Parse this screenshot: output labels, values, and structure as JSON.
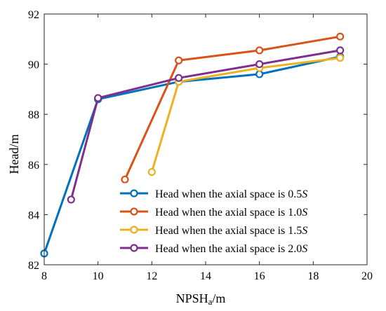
{
  "chart_data": {
    "type": "line",
    "xlabel": "NPSHa/m",
    "xlabel_main": "NPSH",
    "xlabel_sub": "a",
    "xlabel_unit": "/m",
    "ylabel": "Head/m",
    "xlim": [
      8,
      20
    ],
    "ylim": [
      82,
      92
    ],
    "xticks": [
      8,
      10,
      12,
      14,
      16,
      18,
      20
    ],
    "yticks": [
      82,
      84,
      86,
      88,
      90,
      92
    ],
    "grid": false,
    "legend_position": "bottom-right",
    "series": [
      {
        "name": "Head when the axial space is 0.5S",
        "label_text": "Head when the axial space is 0.5",
        "label_var": "S",
        "color": "#0072BD",
        "points": [
          [
            8,
            82.45
          ],
          [
            10,
            88.6
          ],
          [
            13,
            89.3
          ],
          [
            16,
            89.6
          ],
          [
            19,
            90.3
          ]
        ]
      },
      {
        "name": "Head when the axial space is 1.0S",
        "label_text": "Head when the axial space is 1.0",
        "label_var": "S",
        "color": "#D95319",
        "points": [
          [
            11,
            85.4
          ],
          [
            13,
            90.15
          ],
          [
            16,
            90.55
          ],
          [
            19,
            91.1
          ]
        ]
      },
      {
        "name": "Head when the axial space is 1.5S",
        "label_text": "Head when the axial space is 1.5",
        "label_var": "S",
        "color": "#EDB120",
        "points": [
          [
            12,
            85.7
          ],
          [
            13,
            89.3
          ],
          [
            16,
            89.85
          ],
          [
            19,
            90.25
          ]
        ]
      },
      {
        "name": "Head when the axial space is 2.0S",
        "label_text": "Head when the axial space is 2.0",
        "label_var": "S",
        "color": "#7E2F8E",
        "points": [
          [
            9,
            84.6
          ],
          [
            10,
            88.65
          ],
          [
            13,
            89.45
          ],
          [
            16,
            90.0
          ],
          [
            19,
            90.55
          ]
        ]
      }
    ]
  }
}
